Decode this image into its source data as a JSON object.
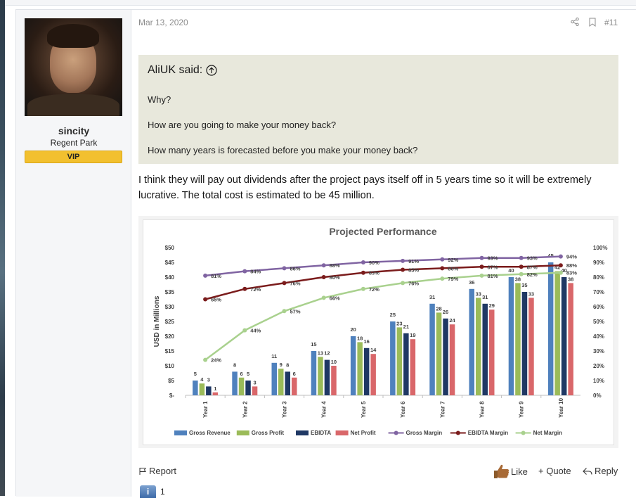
{
  "user": {
    "name": "sincity",
    "title": "Regent Park",
    "banner": "VIP"
  },
  "post": {
    "date": "Mar 13, 2020",
    "number": "#11",
    "quote": {
      "author": "AliUK said:",
      "lines": [
        "Why?",
        "How are you going to make your money back?",
        "How many years is forecasted before you make your money back?"
      ]
    },
    "body": "I think they will pay out dividends after the project pays itself off in 5 years time so it will be extremely lucrative. The total cost is estimated to be 45 million."
  },
  "actions": {
    "report": "Report",
    "like": "Like",
    "quote": "+ Quote",
    "reply": "Reply"
  },
  "reactions": {
    "icon_label": "i",
    "count": "1"
  },
  "chart_data": {
    "type": "bar",
    "title": "Projected Performance",
    "ylabel": "USD in Millions",
    "categories": [
      "Year 1",
      "Year 2",
      "Year 3",
      "Year 4",
      "Year 5",
      "Year 6",
      "Year 7",
      "Year 8",
      "Year 9",
      "Year 10"
    ],
    "ylim": [
      0,
      50
    ],
    "y2lim": [
      0,
      100
    ],
    "yticks": [
      "$-",
      "$5",
      "$10",
      "$15",
      "$20",
      "$25",
      "$30",
      "$35",
      "$40",
      "$45",
      "$50"
    ],
    "y2ticks": [
      "0%",
      "10%",
      "20%",
      "30%",
      "40%",
      "50%",
      "60%",
      "70%",
      "80%",
      "90%",
      "100%"
    ],
    "series": [
      {
        "name": "Gross Revenue",
        "kind": "bar",
        "color": "#4f81bd",
        "values": [
          5,
          8,
          11,
          15,
          20,
          25,
          31,
          36,
          40,
          45
        ]
      },
      {
        "name": "Gross Profit",
        "kind": "bar",
        "color": "#9bbb59",
        "values": [
          4,
          6,
          9,
          13,
          18,
          23,
          28,
          33,
          38,
          42
        ]
      },
      {
        "name": "EBIDTA",
        "kind": "bar",
        "color": "#1f3864",
        "values": [
          3,
          5,
          8,
          12,
          16,
          21,
          26,
          31,
          35,
          40
        ]
      },
      {
        "name": "Net Profit",
        "kind": "bar",
        "color": "#d9676a",
        "values": [
          1,
          3,
          6,
          10,
          14,
          19,
          24,
          29,
          33,
          38
        ]
      },
      {
        "name": "Gross Margin",
        "kind": "line",
        "color": "#8064a2",
        "values": [
          81,
          84,
          86,
          88,
          90,
          91,
          92,
          93,
          93,
          94
        ]
      },
      {
        "name": "EBIDTA Margin",
        "kind": "line",
        "color": "#7b1c1c",
        "values": [
          65,
          72,
          76,
          80,
          83,
          85,
          86,
          87,
          87,
          88
        ]
      },
      {
        "name": "Net Margin",
        "kind": "line",
        "color": "#a9d18e",
        "values": [
          24,
          44,
          57,
          66,
          72,
          76,
          79,
          81,
          82,
          83
        ]
      }
    ],
    "legend": "bottom"
  }
}
